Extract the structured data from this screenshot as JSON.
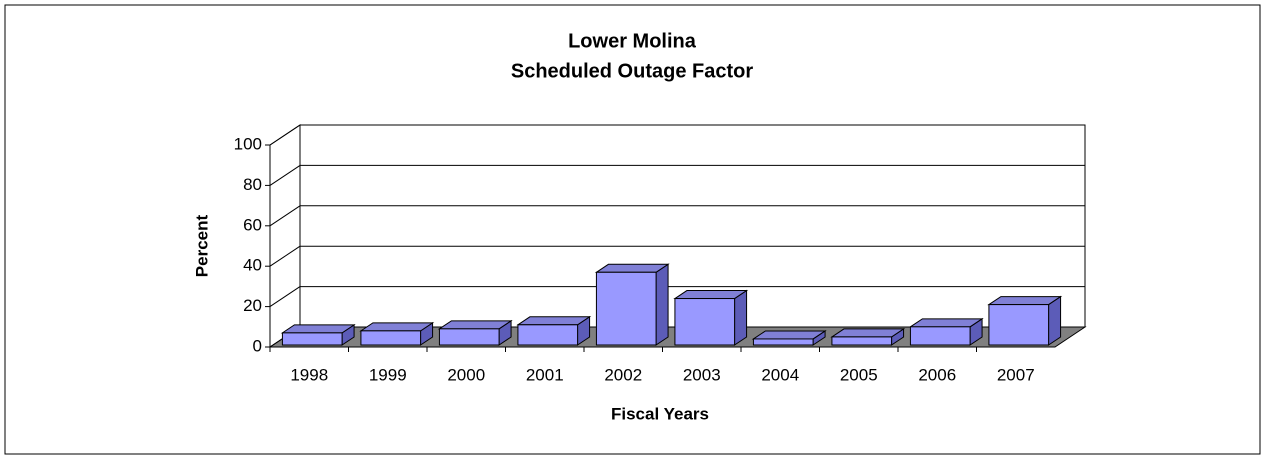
{
  "chart_data": {
    "type": "bar",
    "title": "Lower Molina",
    "subtitle": "Scheduled Outage Factor",
    "x_label": "Fiscal Years",
    "y_label": "Percent",
    "categories": [
      "1998",
      "1999",
      "2000",
      "2001",
      "2002",
      "2003",
      "2004",
      "2005",
      "2006",
      "2007"
    ],
    "values": [
      6,
      7,
      8,
      10,
      36,
      23,
      3,
      4,
      9,
      20
    ],
    "color": "#9999ff",
    "ylim": [
      0,
      100
    ],
    "yticks": [
      0,
      20,
      40,
      60,
      80,
      100
    ],
    "grid": true
  }
}
